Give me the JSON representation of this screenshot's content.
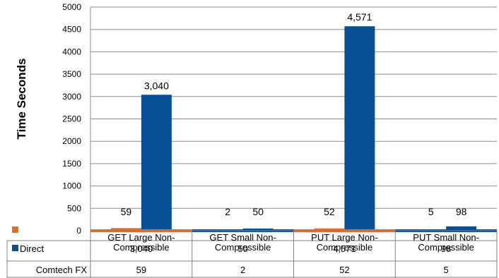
{
  "chart_data": {
    "type": "bar",
    "ylabel": "Time  Seconds",
    "ylim": [
      0,
      5000
    ],
    "yticks": [
      0,
      500,
      1000,
      1500,
      2000,
      2500,
      3000,
      3500,
      4000,
      4500,
      5000
    ],
    "grid": true,
    "categories": [
      [
        "GET Large Non-",
        "Compressible"
      ],
      [
        "GET Small Non-",
        "Compressible"
      ],
      [
        "PUT Large Non-",
        "Compressible"
      ],
      [
        "PUT Small Non-",
        "Compressible"
      ]
    ],
    "series": [
      {
        "name": "Comtech FX",
        "color": "#E36C2A",
        "values": [
          59,
          2,
          52,
          5
        ],
        "labels": [
          "59",
          "2",
          "52",
          "5"
        ]
      },
      {
        "name": "Direct",
        "color": "#0A5096",
        "values": [
          3040,
          50,
          4571,
          98
        ],
        "labels": [
          "3,040",
          "50",
          "4,571",
          "98"
        ]
      }
    ],
    "legend": "data-table"
  }
}
